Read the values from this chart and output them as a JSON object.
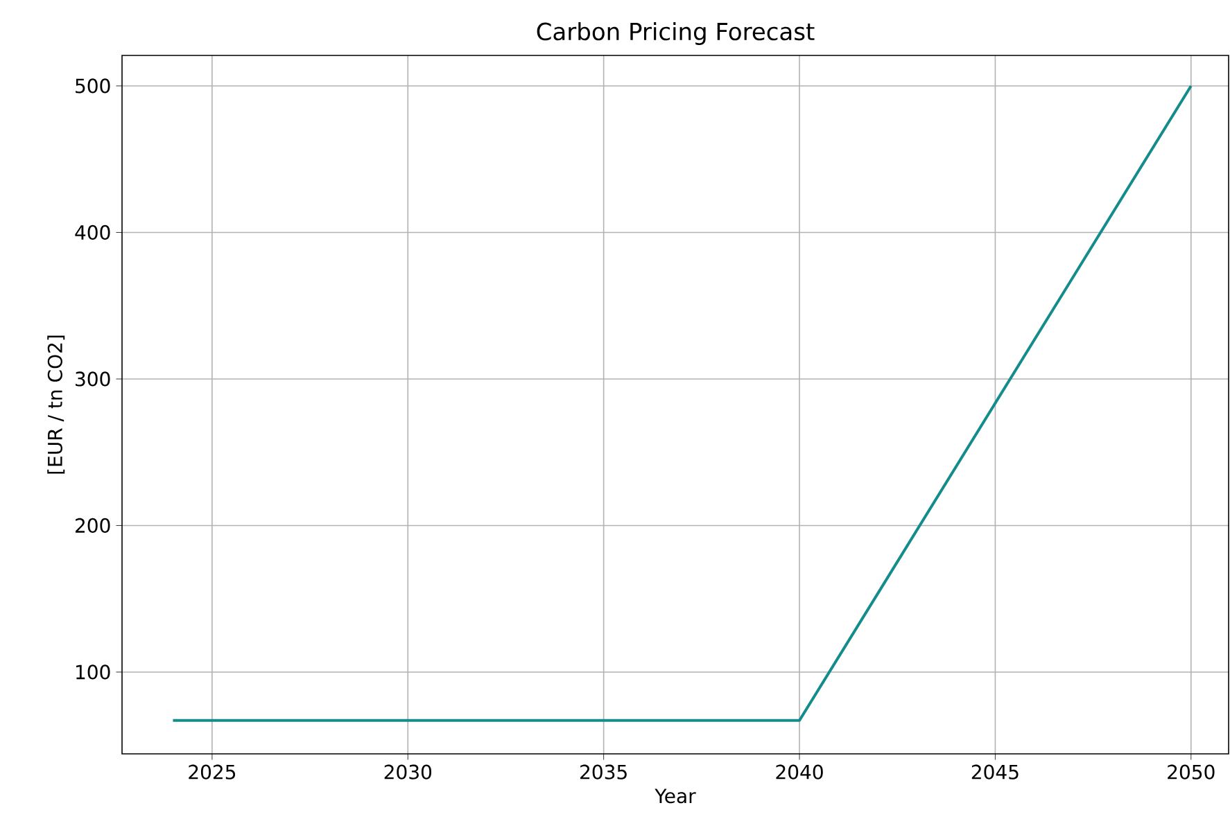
{
  "chart_data": {
    "type": "line",
    "title": "Carbon Pricing Forecast",
    "xlabel": "Year",
    "ylabel": "[EUR / tn CO2]",
    "x": [
      2024,
      2040,
      2050
    ],
    "series": [
      {
        "color": "#148c8c",
        "values": [
          67,
          67,
          500
        ]
      }
    ],
    "xlim": [
      2022.7,
      2050.96
    ],
    "ylim": [
      44.2,
      520.8
    ],
    "xticks": [
      2025,
      2030,
      2035,
      2040,
      2045,
      2050
    ],
    "yticks": [
      100,
      200,
      300,
      400,
      500
    ],
    "grid": true,
    "marker": "none",
    "line_style": "solid"
  }
}
